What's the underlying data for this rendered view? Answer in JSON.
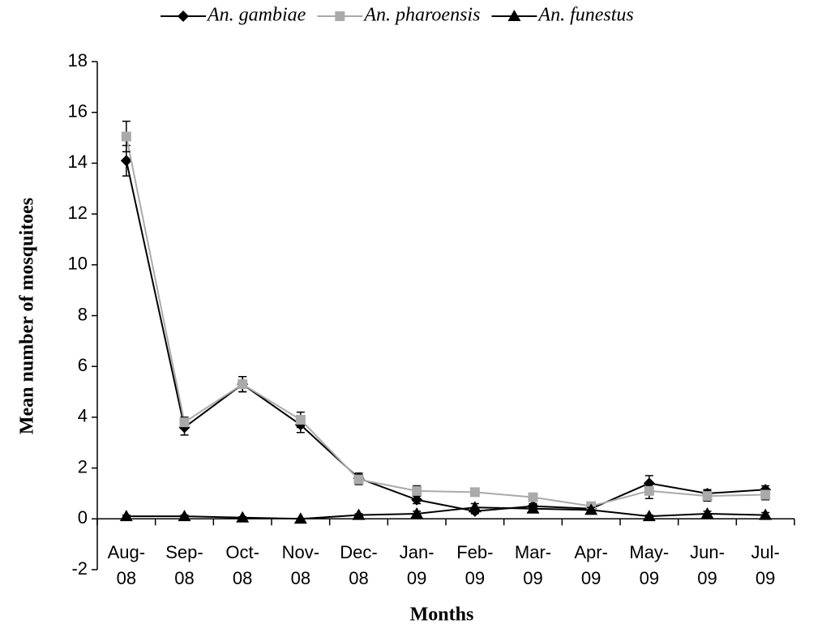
{
  "chart_data": {
    "type": "line",
    "x_label": "Months",
    "y_label": "Mean number of mosquitoes",
    "categories": [
      "Aug-08",
      "Sep-08",
      "Oct-08",
      "Nov-08",
      "Dec-08",
      "Jan-09",
      "Feb-09",
      "Mar-09",
      "Apr-09",
      "May-09",
      "Jun-09",
      "Jul-09"
    ],
    "ylim": [
      -2,
      18
    ],
    "yticks": [
      -2,
      0,
      2,
      4,
      6,
      8,
      10,
      12,
      14,
      16,
      18
    ],
    "legend_position": "top",
    "series": [
      {
        "name": "An. gambiae",
        "color": "#000000",
        "marker": "diamond",
        "values": [
          14.1,
          3.6,
          5.3,
          3.7,
          1.6,
          0.75,
          0.3,
          0.5,
          0.4,
          1.4,
          1.0,
          1.15
        ],
        "errors": [
          0.6,
          0.3,
          0.3,
          0.3,
          0.2,
          0.15,
          0.1,
          0.1,
          0.1,
          0.3,
          0.15,
          0.15
        ]
      },
      {
        "name": "An. pharoensis",
        "color": "#aaaaaa",
        "marker": "square",
        "values": [
          15.05,
          3.8,
          5.3,
          3.9,
          1.55,
          1.1,
          1.05,
          0.85,
          0.5,
          1.1,
          0.9,
          0.95
        ],
        "errors": [
          0.6,
          0.2,
          0.3,
          0.3,
          0.2,
          0.2,
          0.1,
          0.1,
          0.1,
          0.3,
          0.2,
          0.2
        ]
      },
      {
        "name": "An. funestus",
        "color": "#000000",
        "marker": "triangle",
        "values": [
          0.1,
          0.1,
          0.05,
          0.0,
          0.15,
          0.2,
          0.45,
          0.4,
          0.35,
          0.1,
          0.2,
          0.15
        ],
        "errors": [
          0.05,
          0.05,
          0.03,
          0.02,
          0.05,
          0.1,
          0.15,
          0.15,
          0.1,
          0.05,
          0.1,
          0.1
        ]
      }
    ]
  }
}
